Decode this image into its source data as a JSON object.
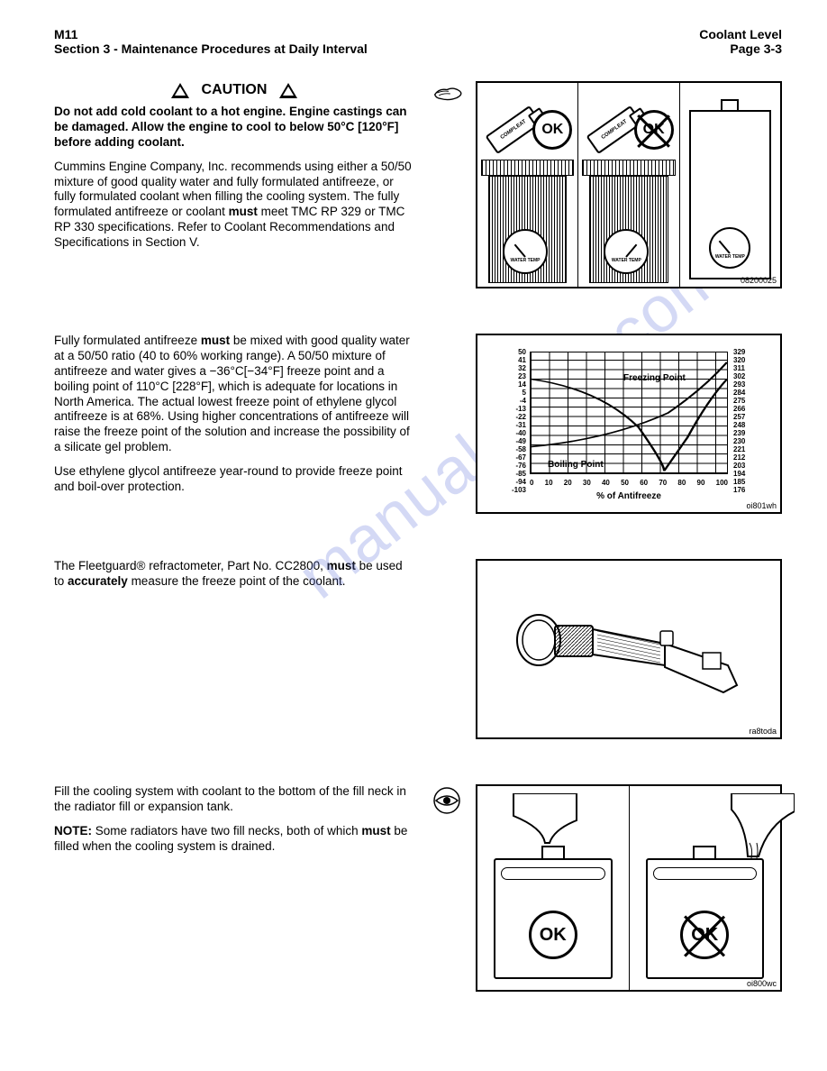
{
  "header": {
    "model": "M11",
    "section": "Section 3 - Maintenance Procedures at Daily Interval",
    "subject": "Coolant Level",
    "page": "Page 3-3"
  },
  "caution": {
    "label": "CAUTION",
    "text": "Do not add cold coolant to a hot engine. Engine castings can be damaged. Allow the engine to cool to below 50°C [120°F] before adding coolant."
  },
  "para1_a": "Cummins Engine Company, Inc. recommends using either a 50/50 mixture of good quality water and fully formulated antifreeze, or fully formulated coolant when filling the cooling system. The fully formulated antifreeze or coolant ",
  "para1_bold": "must",
  "para1_b": " meet TMC RP 329 or TMC RP 330 specifications. Refer to Coolant Recommendations and Specifications in Section V.",
  "para2_a": "Fully formulated antifreeze ",
  "para2_bold": "must",
  "para2_b": " be mixed with good quality water at a 50/50 ratio (40 to 60% working range). A 50/50 mixture of antifreeze and water gives a −36°C[−34°F] freeze point and a boiling point of 110°C [228°F], which is adequate for locations in North America. The actual lowest freeze point of ethylene glycol antifreeze is at 68%. Using higher concentrations of antifreeze will raise the freeze point of the solution and increase the possibility of a silicate gel problem.",
  "para3": "Use ethylene glycol antifreeze year-round to provide freeze point and boil-over protection.",
  "para4_a": "The Fleetguard® refractometer, Part No. CC2800, ",
  "para4_bold1": "must",
  "para4_b": " be used to ",
  "para4_bold2": "accurately",
  "para4_c": " measure the freeze point of the coolant.",
  "para5": "Fill the cooling system with coolant to the bottom of the fill neck in the radiator fill or expansion tank.",
  "para6_a": "NOTE:",
  "para6_b": " Some radiators have two fill necks, both of which ",
  "para6_bold": "must",
  "para6_c": " be filled when the cooling system is drained.",
  "fig1": {
    "ok": "OK",
    "bottle": "COMPLEAT",
    "gauge": "WATER\nTEMP",
    "code": "08200025"
  },
  "fig2": {
    "yleft": [
      "50",
      "41",
      "32",
      "23",
      "14",
      "5",
      "-4",
      "-13",
      "-22",
      "-31",
      "-40",
      "-49",
      "-58",
      "-67",
      "-76",
      "-85",
      "-94",
      "-103"
    ],
    "yright": [
      "329",
      "320",
      "311",
      "302",
      "293",
      "284",
      "275",
      "266",
      "257",
      "248",
      "239",
      "230",
      "221",
      "212",
      "203",
      "194",
      "185",
      "176"
    ],
    "xlabels": [
      "0",
      "10",
      "20",
      "30",
      "40",
      "50",
      "60",
      "70",
      "80",
      "90",
      "100"
    ],
    "xtitle": "% of Antifreeze",
    "freezing": "Freezing Point",
    "boiling": "Boiling Point",
    "code": "oi801wh"
  },
  "fig3": {
    "code": "ra8toda"
  },
  "fig4": {
    "ok": "OK",
    "code": "oi800wc"
  },
  "watermark": "manualshive.com"
}
